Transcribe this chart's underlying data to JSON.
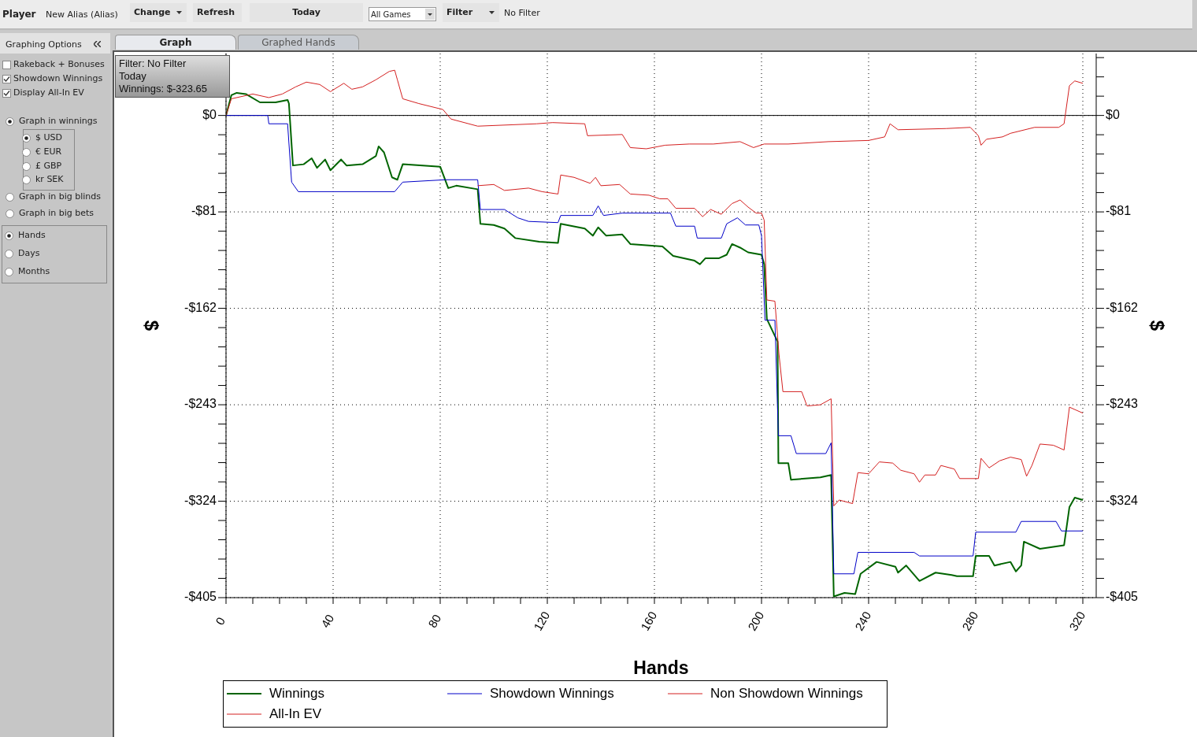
{
  "chart_data": {
    "type": "line",
    "xlabel": "Hands",
    "ylabel": "$",
    "y2label": "$",
    "xlim": [
      0,
      325
    ],
    "xticks": [
      0,
      {
        "value": 10,
        "label": null
      },
      {
        "value": 20,
        "label": null
      },
      {
        "value": 30,
        "label": null
      },
      40,
      {
        "value": 50,
        "label": null
      },
      {
        "value": 60,
        "label": null
      },
      {
        "value": 70,
        "label": null
      },
      80,
      {
        "value": 90,
        "label": null
      },
      {
        "value": 100,
        "label": null
      },
      {
        "value": 110,
        "label": null
      },
      120,
      {
        "value": 130,
        "label": null
      },
      {
        "value": 140,
        "label": null
      },
      {
        "value": 150,
        "label": null
      },
      160,
      {
        "value": 170,
        "label": null
      },
      {
        "value": 180,
        "label": null
      },
      {
        "value": 190,
        "label": null
      },
      200,
      {
        "value": 210,
        "label": null
      },
      {
        "value": 220,
        "label": null
      },
      {
        "value": 230,
        "label": null
      },
      240,
      {
        "value": 250,
        "label": null
      },
      {
        "value": 260,
        "label": null
      },
      {
        "value": 270,
        "label": null
      },
      280,
      {
        "value": 290,
        "label": null
      },
      {
        "value": 300,
        "label": null
      },
      {
        "value": 310,
        "label": null
      },
      320
    ],
    "ylim": [
      -405,
      52
    ],
    "yticks": [
      {
        "value": 48.6,
        "label": null
      },
      {
        "value": 32.4,
        "label": null
      },
      {
        "value": 16.2,
        "label": null
      },
      {
        "value": 0,
        "label": "$0"
      },
      {
        "value": -16.2,
        "label": null
      },
      {
        "value": -32.4,
        "label": null
      },
      {
        "value": -48.6,
        "label": null
      },
      {
        "value": -64.8,
        "label": null
      },
      {
        "value": -81,
        "label": "-$81"
      },
      {
        "value": -97.2,
        "label": null
      },
      {
        "value": -113.4,
        "label": null
      },
      {
        "value": -129.6,
        "label": null
      },
      {
        "value": -145.8,
        "label": null
      },
      {
        "value": -162,
        "label": "-$162"
      },
      {
        "value": -178.2,
        "label": null
      },
      {
        "value": -194.4,
        "label": null
      },
      {
        "value": -210.6,
        "label": null
      },
      {
        "value": -226.8,
        "label": null
      },
      {
        "value": -243,
        "label": "-$243"
      },
      {
        "value": -259.2,
        "label": null
      },
      {
        "value": -275.4,
        "label": null
      },
      {
        "value": -291.6,
        "label": null
      },
      {
        "value": -307.8,
        "label": null
      },
      {
        "value": -324,
        "label": "-$324"
      },
      {
        "value": -340.2,
        "label": null
      },
      {
        "value": -356.4,
        "label": null
      },
      {
        "value": -372.6,
        "label": null
      },
      {
        "value": -388.8,
        "label": null
      },
      {
        "value": -405,
        "label": "-$405"
      }
    ],
    "y2lim": [
      -405,
      52
    ],
    "y2ticks": [
      {
        "value": 48.6,
        "label": null
      },
      {
        "value": 32.4,
        "label": null
      },
      {
        "value": 16.2,
        "label": null
      },
      {
        "value": 0,
        "label": "$0"
      },
      {
        "value": -16.2,
        "label": null
      },
      {
        "value": -32.4,
        "label": null
      },
      {
        "value": -48.6,
        "label": null
      },
      {
        "value": -64.8,
        "label": null
      },
      {
        "value": -81,
        "label": "-$81"
      },
      {
        "value": -97.2,
        "label": null
      },
      {
        "value": -113.4,
        "label": null
      },
      {
        "value": -129.6,
        "label": null
      },
      {
        "value": -145.8,
        "label": null
      },
      {
        "value": -162,
        "label": "-$162"
      },
      {
        "value": -178.2,
        "label": null
      },
      {
        "value": -194.4,
        "label": null
      },
      {
        "value": -210.6,
        "label": null
      },
      {
        "value": -226.8,
        "label": null
      },
      {
        "value": -243,
        "label": "-$243"
      },
      {
        "value": -259.2,
        "label": null
      },
      {
        "value": -275.4,
        "label": null
      },
      {
        "value": -291.6,
        "label": null
      },
      {
        "value": -307.8,
        "label": null
      },
      {
        "value": -324,
        "label": "-$324"
      },
      {
        "value": -340.2,
        "label": null
      },
      {
        "value": -356.4,
        "label": null
      },
      {
        "value": -372.6,
        "label": null
      },
      {
        "value": -388.8,
        "label": null
      },
      {
        "value": -405,
        "label": "-$405"
      }
    ],
    "grid": true,
    "legend": "bottom",
    "marker": "none",
    "line_style": "solid",
    "ref_lines": [
      {
        "axis": "y",
        "value": 0,
        "color": "#000000",
        "line_style": "solid"
      }
    ],
    "series": [
      {
        "name": "Winnings",
        "color": "#006400",
        "x": [
          0,
          2,
          4,
          7.4,
          12.7,
          18.5,
          23,
          23.5,
          25,
          29,
          32,
          34,
          37,
          39,
          43,
          45,
          51,
          56,
          57,
          59,
          62,
          64,
          66,
          80,
          83,
          86,
          94,
          95,
          100,
          104,
          108,
          117,
          124,
          125,
          134,
          137,
          139,
          142,
          148,
          151,
          163,
          167,
          175,
          177,
          179,
          184,
          187,
          189,
          192,
          195,
          200,
          201,
          202,
          206,
          206.3,
          210,
          211,
          222,
          226,
          227,
          231,
          235,
          237,
          243,
          250,
          251,
          254,
          259,
          265,
          271,
          273,
          279,
          280,
          285,
          287,
          293,
          295,
          297,
          298,
          304,
          313,
          315,
          317,
          320
        ],
        "values": [
          0,
          17,
          19,
          18,
          11,
          11,
          13,
          10,
          -42,
          -41,
          -36,
          -44,
          -37,
          -46,
          -37,
          -42,
          -41,
          -34,
          -26,
          -31,
          -52,
          -54,
          -41,
          -43,
          -61,
          -59,
          -62,
          -91,
          -92,
          -95,
          -103,
          -106,
          -107,
          -91,
          -95,
          -101,
          -94,
          -101,
          -100,
          -108,
          -110,
          -118,
          -122,
          -125,
          -120,
          -120,
          -117,
          -108,
          -111,
          -115,
          -117,
          -125,
          -171,
          -190,
          -292,
          -292,
          -306,
          -304,
          -302,
          -404,
          -401,
          -402,
          -385,
          -375,
          -379,
          -384,
          -378,
          -391,
          -384,
          -386,
          -387,
          -387,
          -370,
          -370,
          -378,
          -375,
          -383,
          -378,
          -358,
          -364,
          -361,
          -329,
          -321,
          -323
        ]
      },
      {
        "name": "Showdown Winnings",
        "color": "#0000c8",
        "x": [
          0,
          15.6,
          16,
          23,
          24.5,
          27,
          63,
          66,
          82,
          94,
          95,
          104,
          109,
          113,
          124,
          125,
          137,
          139,
          141,
          148,
          166,
          168,
          175,
          176,
          185,
          187,
          191,
          194,
          199,
          200,
          201.3,
          205,
          206.3,
          211,
          213,
          224,
          226,
          227,
          234.5,
          236,
          257,
          259,
          279,
          280,
          295,
          297,
          310,
          312,
          320
        ],
        "values": [
          0,
          0,
          -7,
          -7,
          -56,
          -64,
          -64,
          -56,
          -54,
          -54,
          -79,
          -79,
          -86,
          -89,
          -90,
          -84,
          -84,
          -76,
          -84,
          -82,
          -82,
          -93,
          -93,
          -103,
          -103,
          -91,
          -86,
          -92,
          -92,
          -101,
          -172,
          -172,
          -269,
          -269,
          -284,
          -284,
          -275,
          -385,
          -385,
          -367,
          -367,
          -370,
          -370,
          -350,
          -350,
          -341,
          -341,
          -349,
          -349
        ]
      },
      {
        "name": "Non Showdown Winnings",
        "color": "#d42020",
        "x": [
          0,
          2,
          10,
          16,
          21,
          26,
          30,
          35,
          39,
          44,
          47,
          51,
          56,
          61,
          63,
          64,
          66,
          72,
          81,
          84,
          94,
          116,
          122,
          134,
          135,
          148,
          151,
          157,
          164,
          173,
          182,
          192,
          197,
          201,
          210,
          225,
          240,
          246,
          248,
          251,
          269,
          278,
          281,
          282,
          284,
          290,
          293,
          302,
          311,
          313,
          315,
          317,
          320
        ],
        "values": [
          0,
          14,
          18,
          15,
          18,
          24,
          28,
          26,
          20,
          27,
          22,
          24,
          30,
          37,
          38,
          30,
          14,
          10,
          5,
          -3,
          -9,
          -7,
          -6,
          -7,
          -17,
          -16,
          -27,
          -28,
          -25,
          -24,
          -24,
          -22,
          -27,
          -24,
          -24,
          -22,
          -21,
          -18,
          -7,
          -12,
          -11,
          -10,
          -17,
          -25,
          -20,
          -18,
          -15,
          -10,
          -10,
          -7,
          25,
          29,
          27
        ]
      },
      {
        "name": "All-In EV",
        "color": "#d42020",
        "x": [
          94,
          100,
          104,
          113,
          118,
          124,
          125,
          130,
          136,
          138,
          140,
          147,
          151,
          158,
          162,
          165,
          168,
          175,
          178,
          181,
          185,
          189,
          192,
          195,
          198,
          200,
          201,
          202,
          205,
          206.5,
          208,
          215,
          217,
          222,
          226,
          227,
          229,
          234,
          236,
          240,
          244,
          249,
          252,
          257,
          259,
          261,
          265,
          267,
          272,
          274,
          281,
          282,
          285,
          289,
          293,
          297,
          299,
          301,
          304,
          309,
          313,
          315,
          320
        ],
        "values": [
          -59,
          -58,
          -63,
          -61,
          -64,
          -66,
          -50,
          -52,
          -57,
          -52,
          -59,
          -58,
          -66,
          -67,
          -70,
          -70,
          -78,
          -78,
          -85,
          -79,
          -83,
          -74,
          -71,
          -77,
          -82,
          -82,
          -88,
          -155,
          -156,
          -200,
          -232,
          -232,
          -244,
          -243,
          -238,
          -328,
          -323,
          -326,
          -300,
          -301,
          -291,
          -292,
          -298,
          -301,
          -308,
          -302,
          -302,
          -294,
          -297,
          -305,
          -305,
          -288,
          -296,
          -290,
          -287,
          -289,
          -303,
          -294,
          -276,
          -277,
          -281,
          -245,
          -250
        ]
      }
    ],
    "annotations": [
      "Player",
      "New Alias (Alias)",
      "Change",
      "Refresh",
      "Today",
      "All Games",
      "Filter",
      "No Filter",
      "Graphing Options",
      "Graph",
      "Graphed Hands",
      "Rakeback + Bonuses",
      "Showdown Winnings",
      "Display All-In EV",
      "Graph in winnings",
      "$ USD",
      "€ EUR",
      "£ GBP",
      "kr SEK",
      "Graph in big blinds",
      "Graph in big bets",
      "Hands",
      "Days",
      "Months",
      "Filter: No Filter",
      "Today",
      "Winnings: $-323.65"
    ]
  }
}
